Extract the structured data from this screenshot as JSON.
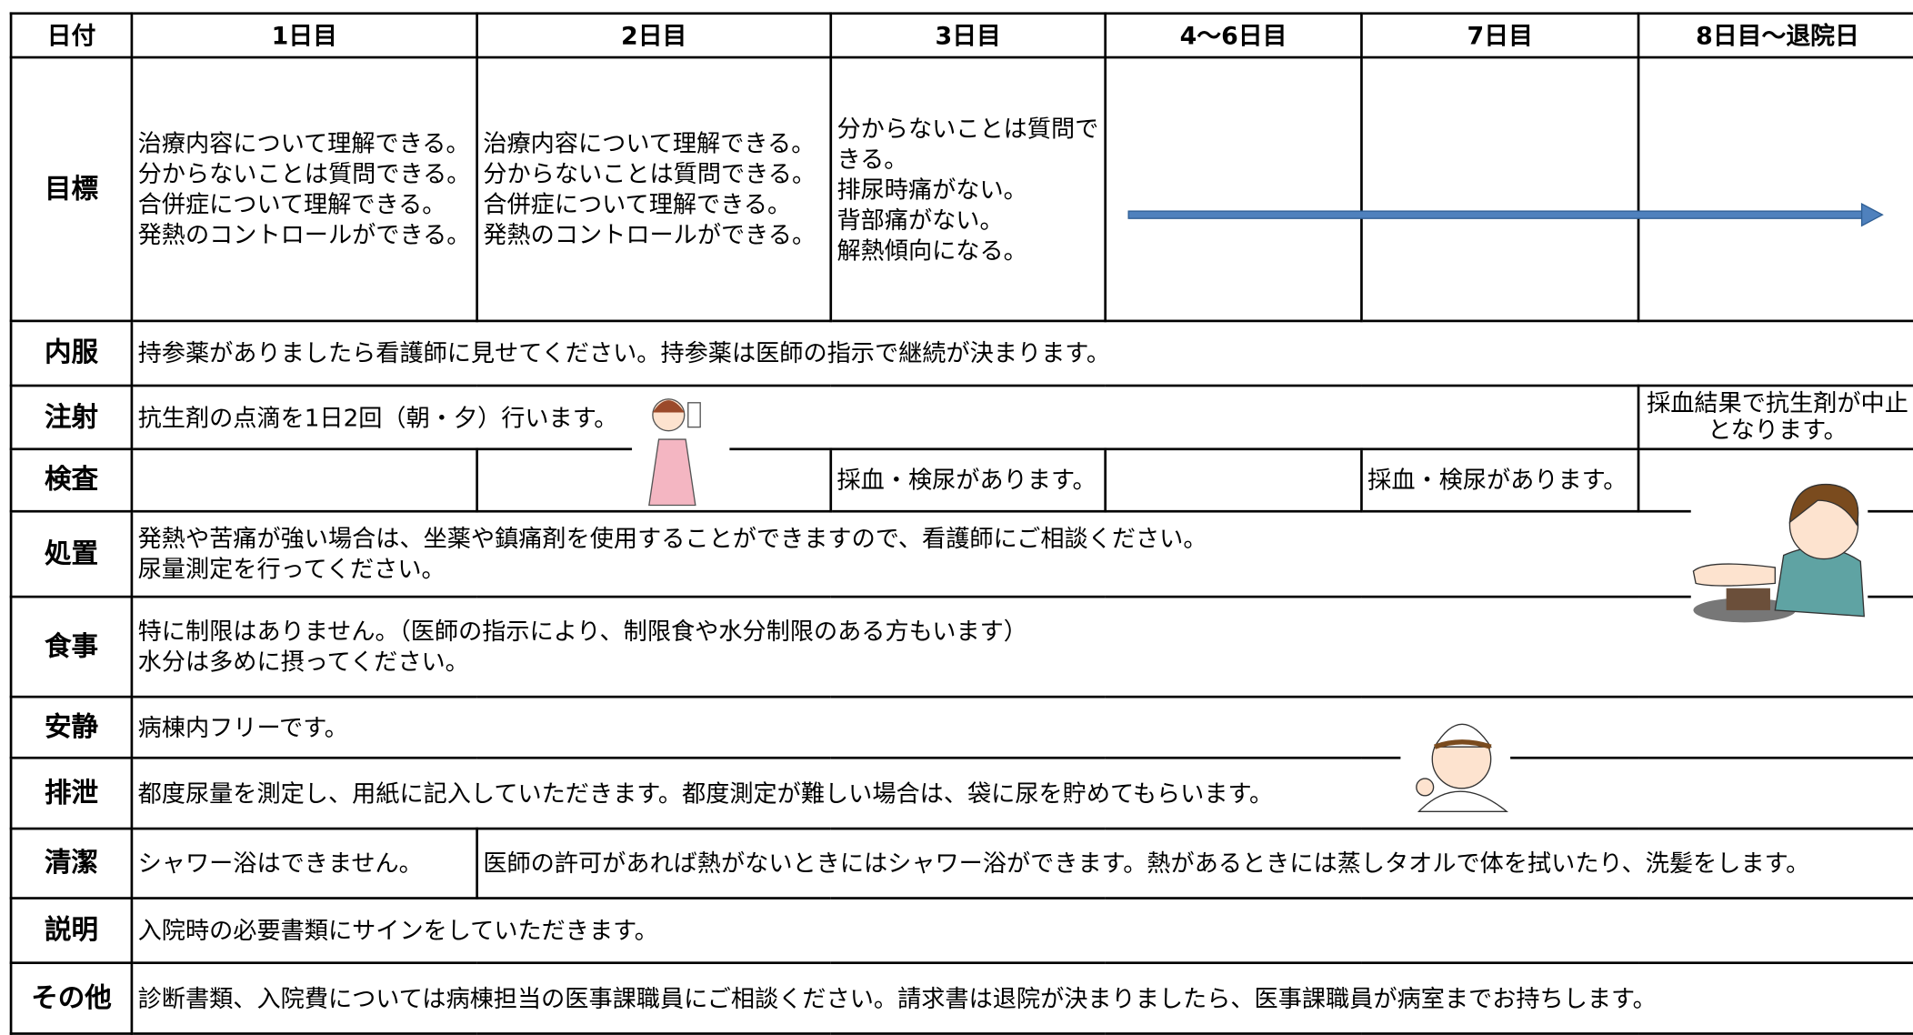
{
  "table": {
    "header": [
      "日付",
      "1日目",
      "2日目",
      "3日目",
      "4〜6日目",
      "7日目",
      "8日目〜退院日"
    ],
    "rows": [
      {
        "label": "目標",
        "cells": [
          [
            "治療内容について理解できる。",
            "分からないことは質問できる。",
            "合併症について理解できる。",
            "発熱のコントロールができる。"
          ],
          [
            "治療内容について理解できる。",
            "分からないことは質問できる。",
            "合併症について理解できる。",
            "発熱のコントロールができる。"
          ],
          [
            "分からないことは質問できる。",
            "排尿時痛がない。",
            "背部痛がない。",
            "解熱傾向になる。"
          ]
        ]
      },
      {
        "label": "内服",
        "cells": [
          "持参薬がありましたら看護師に見せてください。持参薬は医師の指示で継続が決まります。"
        ]
      },
      {
        "label": "注射",
        "cells": [
          "抗生剤の点滴を1日2回（朝・夕）行います。",
          "採血結果で抗生剤が中止となります。"
        ]
      },
      {
        "label": "検査",
        "cells": [
          "採血・検尿があります。",
          "採血・検尿があります。"
        ]
      },
      {
        "label": "処置",
        "cells": [
          [
            "発熱や苦痛が強い場合は、坐薬や鎮痛剤を使用することができますので、看護師にご相談ください。",
            "尿量測定を行ってください。"
          ]
        ]
      },
      {
        "label": "食事",
        "cells": [
          [
            "特に制限はありません。（医師の指示により、制限食や水分制限のある方もいます）",
            "水分は多めに摂ってください。"
          ]
        ]
      },
      {
        "label": "安静",
        "cells": [
          "病棟内フリーです。"
        ]
      },
      {
        "label": "排泄",
        "cells": [
          "都度尿量を測定し、用紙に記入していただきます。都度測定が難しい場合は、袋に尿を貯めてもらいます。"
        ]
      },
      {
        "label": "清潔",
        "cells": [
          "シャワー浴はできません。",
          "医師の許可があれば熱がないときにはシャワー浴ができます。熱があるときには蒸しタオルで体を拭いたり、洗髪をします。"
        ]
      },
      {
        "label": "説明",
        "cells": [
          "入院時の必要書類にサインをしていただきます。"
        ]
      },
      {
        "label": "その他",
        "cells": [
          "診断書類、入院費については病棟担当の医事課職員にご相談ください。請求書は退院が決まりましたら、医事課職員が病室までお持ちします。"
        ]
      }
    ]
  }
}
